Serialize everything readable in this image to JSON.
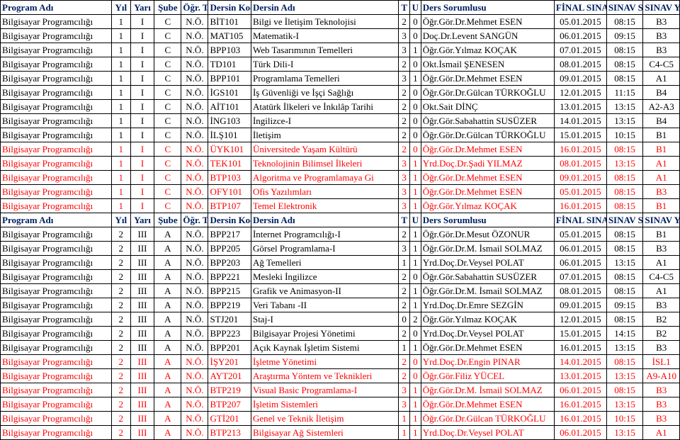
{
  "colors": {
    "header_text": "#002060",
    "normal_text": "#000000",
    "highlight_text": "#ff0000",
    "border": "#000000",
    "background": "#ffffff"
  },
  "font": {
    "family": "Times New Roman",
    "size_pt": 10
  },
  "header": {
    "program": "Program Adı",
    "yil": "Yıl",
    "yar": "Yarı",
    "sube": "Şube",
    "tur": "Öğr. Türü",
    "kod": "Dersin Kodu",
    "ad": "Dersin Adı",
    "t": "T",
    "u": "U",
    "sor": "Ders Sorumlusu",
    "tarih": "FİNAL SINAV",
    "saat": "SINAV SAATİ",
    "yer": "SINAV YERİ"
  },
  "rows1": [
    {
      "c": "blk",
      "p": "Bilgisayar Programcılığı",
      "y": "1",
      "r": "I",
      "s": "C",
      "t": "N.Ö.",
      "k": "BİT101",
      "a": "Bilgi ve İletişim Teknolojisi",
      "tt": "2",
      "u": "0",
      "so": "Öğr.Gör.Dr.Mehmet ESEN",
      "d": "05.01.2015",
      "h": "08:15",
      "l": "B3"
    },
    {
      "c": "blk",
      "p": "Bilgisayar Programcılığı",
      "y": "1",
      "r": "I",
      "s": "C",
      "t": "N.Ö.",
      "k": "MAT105",
      "a": "Matematik-I",
      "tt": "3",
      "u": "0",
      "so": "Doç.Dr.Levent SANGÜN",
      "d": "06.01.2015",
      "h": "09:15",
      "l": "B3"
    },
    {
      "c": "blk",
      "p": "Bilgisayar Programcılığı",
      "y": "1",
      "r": "I",
      "s": "C",
      "t": "N.Ö.",
      "k": "BPP103",
      "a": "Web Tasarımının Temelleri",
      "tt": "3",
      "u": "1",
      "so": "Öğr.Gör.Yılmaz KOÇAK",
      "d": "07.01.2015",
      "h": "08:15",
      "l": "B3"
    },
    {
      "c": "blk",
      "p": "Bilgisayar Programcılığı",
      "y": "1",
      "r": "I",
      "s": "C",
      "t": "N.Ö.",
      "k": "TD101",
      "a": "Türk Dili-I",
      "tt": "2",
      "u": "0",
      "so": "Okt.İsmail ŞENESEN",
      "d": "08.01.2015",
      "h": "08:15",
      "l": "C4-C5"
    },
    {
      "c": "blk",
      "p": "Bilgisayar Programcılığı",
      "y": "1",
      "r": "I",
      "s": "C",
      "t": "N.Ö.",
      "k": "BPP101",
      "a": "Programlama Temelleri",
      "tt": "3",
      "u": "1",
      "so": "Öğr.Gör.Dr.Mehmet ESEN",
      "d": "09.01.2015",
      "h": "08:15",
      "l": "A1"
    },
    {
      "c": "blk",
      "p": "Bilgisayar Programcılığı",
      "y": "1",
      "r": "I",
      "s": "C",
      "t": "N.Ö.",
      "k": "İGS101",
      "a": "İş Güvenliği ve İşçi Sağlığı",
      "tt": "2",
      "u": "0",
      "so": "Öğr.Gör.Dr.Gülcan TÜRKOĞLU",
      "d": "12.01.2015",
      "h": "11:15",
      "l": "B4"
    },
    {
      "c": "blk",
      "p": "Bilgisayar Programcılığı",
      "y": "1",
      "r": "I",
      "s": "C",
      "t": "N.Ö.",
      "k": "AİT101",
      "a": "Atatürk İlkeleri ve İnkılâp Tarihi",
      "tt": "2",
      "u": "0",
      "so": "Okt.Sait DİNÇ",
      "d": "13.01.2015",
      "h": "13:15",
      "l": "A2-A3"
    },
    {
      "c": "blk",
      "p": "Bilgisayar Programcılığı",
      "y": "1",
      "r": "I",
      "s": "C",
      "t": "N.Ö.",
      "k": "İNG103",
      "a": "İngilizce-I",
      "tt": "2",
      "u": "0",
      "so": "Öğr.Gör.Sabahattin SUSÜZER",
      "d": "14.01.2015",
      "h": "13:15",
      "l": "B4"
    },
    {
      "c": "blk",
      "p": "Bilgisayar Programcılığı",
      "y": "1",
      "r": "I",
      "s": "C",
      "t": "N.Ö.",
      "k": "İLŞ101",
      "a": "İletişim",
      "tt": "2",
      "u": "0",
      "so": "Öğr.Gör.Dr.Gülcan TÜRKOĞLU",
      "d": "15.01.2015",
      "h": "10:15",
      "l": "B1"
    },
    {
      "c": "red",
      "p": "Bilgisayar Programcılığı",
      "y": "1",
      "r": "I",
      "s": "C",
      "t": "N.Ö.",
      "k": "ÜYK101",
      "a": "Üniversitede Yaşam Kültürü",
      "tt": "2",
      "u": "0",
      "so": "Öğr.Gör.Dr.Mehmet ESEN",
      "d": "16.01.2015",
      "h": "08:15",
      "l": "B1"
    },
    {
      "c": "red",
      "p": "Bilgisayar Programcılığı",
      "y": "1",
      "r": "I",
      "s": "C",
      "t": "N.Ö.",
      "k": "TEK101",
      "a": "Teknolojinin Bilimsel İlkeleri",
      "tt": "3",
      "u": "1",
      "so": "Yrd.Doç.Dr.Şadi YILMAZ",
      "d": "08.01.2015",
      "h": "13:15",
      "l": "A1"
    },
    {
      "c": "red",
      "p": "Bilgisayar Programcılığı",
      "y": "1",
      "r": "I",
      "s": "C",
      "t": "N.Ö.",
      "k": "BTP103",
      "a": "Algoritma ve Programlamaya Gi",
      "tt": "3",
      "u": "1",
      "so": "Öğr.Gör.Dr.Mehmet ESEN",
      "d": "09.01.2015",
      "h": "08:15",
      "l": "A1"
    },
    {
      "c": "red",
      "p": "Bilgisayar Programcılığı",
      "y": "1",
      "r": "I",
      "s": "C",
      "t": "N.Ö.",
      "k": "OFY101",
      "a": "Ofis Yazılımları",
      "tt": "3",
      "u": "1",
      "so": "Öğr.Gör.Dr.Mehmet ESEN",
      "d": "05.01.2015",
      "h": "08:15",
      "l": "B3"
    },
    {
      "c": "red",
      "p": "Bilgisayar Programcılığı",
      "y": "1",
      "r": "I",
      "s": "C",
      "t": "N.Ö.",
      "k": "BTP107",
      "a": "Temel Elektronik",
      "tt": "3",
      "u": "1",
      "so": "Öğr.Gör.Yılmaz KOÇAK",
      "d": "16.01.2015",
      "h": "08:15",
      "l": "B1"
    }
  ],
  "rows2": [
    {
      "c": "blk",
      "p": "Bilgisayar Programcılığı",
      "y": "2",
      "r": "III",
      "s": "A",
      "t": "N.Ö.",
      "k": "BPP217",
      "a": "İnternet Programcılığı-I",
      "tt": "2",
      "u": "1",
      "so": "Öğr.Gör.Dr.Mesut ÖZONUR",
      "d": "05.01.2015",
      "h": "08:15",
      "l": "B1"
    },
    {
      "c": "blk",
      "p": "Bilgisayar Programcılığı",
      "y": "2",
      "r": "III",
      "s": "A",
      "t": "N.Ö.",
      "k": "BPP205",
      "a": "Görsel Programlama-I",
      "tt": "3",
      "u": "1",
      "so": "Öğr.Gör.Dr.M. İsmail SOLMAZ",
      "d": "06.01.2015",
      "h": "08:15",
      "l": "B3"
    },
    {
      "c": "blk",
      "p": "Bilgisayar Programcılığı",
      "y": "2",
      "r": "III",
      "s": "A",
      "t": "N.Ö.",
      "k": "BPP203",
      "a": "Ağ Temelleri",
      "tt": "1",
      "u": "1",
      "so": "Yrd.Doç.Dr.Veysel POLAT",
      "d": "06.01.2015",
      "h": "13:15",
      "l": "A1"
    },
    {
      "c": "blk",
      "p": "Bilgisayar Programcılığı",
      "y": "2",
      "r": "III",
      "s": "A",
      "t": "N.Ö.",
      "k": "BPP221",
      "a": "Mesleki İngilizce",
      "tt": "2",
      "u": "0",
      "so": "Öğr.Gör.Sabahattin SUSÜZER",
      "d": "07.01.2015",
      "h": "08:15",
      "l": "C4-C5"
    },
    {
      "c": "blk",
      "p": "Bilgisayar Programcılığı",
      "y": "2",
      "r": "III",
      "s": "A",
      "t": "N.Ö.",
      "k": "BPP215",
      "a": "Grafik ve Animasyon-II",
      "tt": "2",
      "u": "1",
      "so": "Öğr.Gör.Dr.M. İsmail SOLMAZ",
      "d": "08.01.2015",
      "h": "08:15",
      "l": "A1"
    },
    {
      "c": "blk",
      "p": "Bilgisayar Programcılığı",
      "y": "2",
      "r": "III",
      "s": "A",
      "t": "N.Ö.",
      "k": "BPP219",
      "a": "Veri Tabanı -II",
      "tt": "2",
      "u": "1",
      "so": "Yrd.Doç.Dr.Emre SEZGİN",
      "d": "09.01.2015",
      "h": "09:15",
      "l": "B3"
    },
    {
      "c": "blk",
      "p": "Bilgisayar Programcılığı",
      "y": "2",
      "r": "III",
      "s": "A",
      "t": "N.Ö.",
      "k": "STJ201",
      "a": "Staj-I",
      "tt": "0",
      "u": "2",
      "so": "Öğr.Gör.Yılmaz KOÇAK",
      "d": "12.01.2015",
      "h": "08:15",
      "l": "B2"
    },
    {
      "c": "blk",
      "p": "Bilgisayar Programcılığı",
      "y": "2",
      "r": "III",
      "s": "A",
      "t": "N.Ö.",
      "k": "BPP223",
      "a": "Bilgisayar Projesi Yönetimi",
      "tt": "2",
      "u": "0",
      "so": "Yrd.Doç.Dr.Veysel POLAT",
      "d": "15.01.2015",
      "h": "14:15",
      "l": "B2"
    },
    {
      "c": "blk",
      "p": "Bilgisayar Programcılığı",
      "y": "2",
      "r": "III",
      "s": "A",
      "t": "N.Ö.",
      "k": "BPP201",
      "a": "Açık Kaynak İşletim Sistemi",
      "tt": "1",
      "u": "1",
      "so": "Öğr.Gör.Dr.Mehmet ESEN",
      "d": "16.01.2015",
      "h": "13:15",
      "l": "B3"
    },
    {
      "c": "red",
      "p": "Bilgisayar Programcılığı",
      "y": "2",
      "r": "III",
      "s": "A",
      "t": "N.Ö.",
      "k": "İŞY201",
      "a": "İşletme Yönetimi",
      "tt": "2",
      "u": "0",
      "so": "Yrd.Doç.Dr.Engin PINAR",
      "d": "14.01.2015",
      "h": "08:15",
      "l": "İSL1"
    },
    {
      "c": "red",
      "p": "Bilgisayar Programcılığı",
      "y": "2",
      "r": "III",
      "s": "A",
      "t": "N.Ö.",
      "k": "AYT201",
      "a": "Araştırma Yöntem ve Teknikleri",
      "tt": "2",
      "u": "0",
      "so": "Öğr.Gör.Filiz YÜCEL",
      "d": "13.01.2015",
      "h": "13:15",
      "l": "A9-A10"
    },
    {
      "c": "red",
      "p": "Bilgisayar Programcılığı",
      "y": "2",
      "r": "III",
      "s": "A",
      "t": "N.Ö.",
      "k": "BTP219",
      "a": "Visual Basic Programlama-I",
      "tt": "3",
      "u": "1",
      "so": "Öğr.Gör.Dr.M. İsmail SOLMAZ",
      "d": "06.01.2015",
      "h": "08:15",
      "l": "B3"
    },
    {
      "c": "red",
      "p": "Bilgisayar Programcılığı",
      "y": "2",
      "r": "III",
      "s": "A",
      "t": "N.Ö.",
      "k": "BTP207",
      "a": "İşletim Sistemleri",
      "tt": "3",
      "u": "1",
      "so": "Öğr.Gör.Dr.Mehmet ESEN",
      "d": "16.01.2015",
      "h": "13:15",
      "l": "B3"
    },
    {
      "c": "red",
      "p": "Bilgisayar Programcılığı",
      "y": "2",
      "r": "III",
      "s": "A",
      "t": "N.Ö.",
      "k": "GTİ201",
      "a": "Genel ve Teknik İletişim",
      "tt": "1",
      "u": "1",
      "so": "Öğr.Gör.Dr.Gülcan TÜRKOĞLU",
      "d": "16.01.2015",
      "h": "10:15",
      "l": "B3"
    },
    {
      "c": "red",
      "p": "Bilgisayar Programcılığı",
      "y": "2",
      "r": "III",
      "s": "A",
      "t": "N.Ö.",
      "k": "BTP213",
      "a": "Bilgisayar Ağ Sistemleri",
      "tt": "1",
      "u": "1",
      "so": "Yrd.Doç.Dr.Veysel POLAT",
      "d": "06.01.2015",
      "h": "13:15",
      "l": "A1"
    }
  ]
}
